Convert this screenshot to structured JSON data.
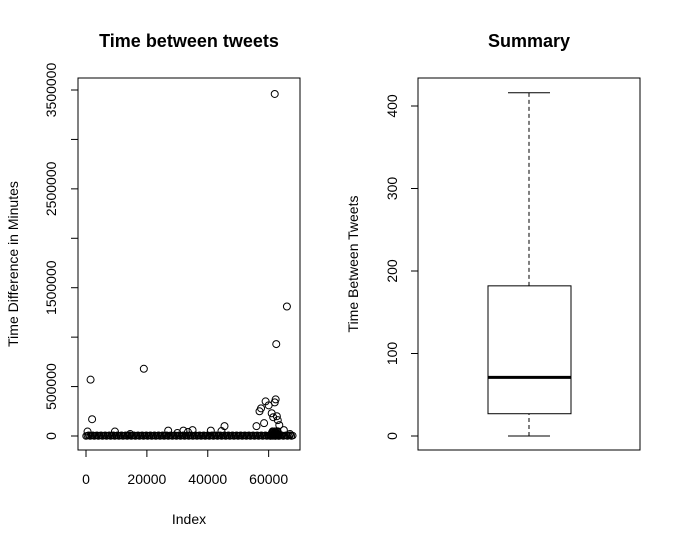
{
  "chart_data": [
    {
      "type": "scatter",
      "title": "Time between tweets",
      "xlabel": "Index",
      "ylabel": "Time Difference in Minutes",
      "xlim": [
        0,
        68000
      ],
      "ylim": [
        0,
        3500000
      ],
      "x_ticks": [
        "0",
        "20000",
        "40000",
        "60000"
      ],
      "y_ticks": [
        "0",
        "500000",
        "1500000",
        "2500000",
        "3500000"
      ],
      "grid": false,
      "points": [
        {
          "x": 1500,
          "y": 570000
        },
        {
          "x": 2000,
          "y": 170000
        },
        {
          "x": 19000,
          "y": 680000
        },
        {
          "x": 62000,
          "y": 3460000
        },
        {
          "x": 62500,
          "y": 930000
        },
        {
          "x": 66000,
          "y": 1310000
        },
        {
          "x": 500,
          "y": 45000
        },
        {
          "x": 9500,
          "y": 45000
        },
        {
          "x": 14500,
          "y": 20000
        },
        {
          "x": 27000,
          "y": 55000
        },
        {
          "x": 30000,
          "y": 30000
        },
        {
          "x": 32000,
          "y": 55000
        },
        {
          "x": 33500,
          "y": 40000
        },
        {
          "x": 35000,
          "y": 60000
        },
        {
          "x": 41000,
          "y": 55000
        },
        {
          "x": 44500,
          "y": 50000
        },
        {
          "x": 45500,
          "y": 100000
        },
        {
          "x": 56000,
          "y": 100000
        },
        {
          "x": 57000,
          "y": 250000
        },
        {
          "x": 57500,
          "y": 280000
        },
        {
          "x": 58500,
          "y": 130000
        },
        {
          "x": 59000,
          "y": 350000
        },
        {
          "x": 60000,
          "y": 310000
        },
        {
          "x": 61000,
          "y": 230000
        },
        {
          "x": 61500,
          "y": 190000
        },
        {
          "x": 62000,
          "y": 340000
        },
        {
          "x": 62300,
          "y": 370000
        },
        {
          "x": 62700,
          "y": 200000
        },
        {
          "x": 63000,
          "y": 160000
        },
        {
          "x": 63500,
          "y": 110000
        },
        {
          "x": 65000,
          "y": 60000
        },
        {
          "x": 67000,
          "y": 20000
        }
      ],
      "dense_band": {
        "x_from": 0,
        "x_to": 68000,
        "y_max": 12000
      }
    },
    {
      "type": "box",
      "title": "Summary",
      "ylabel": "Time Between Tweets",
      "ylim": [
        0,
        420
      ],
      "y_ticks": [
        "0",
        "100",
        "200",
        "300",
        "400"
      ],
      "box": {
        "min": 0,
        "q1": 27,
        "median": 71,
        "q3": 182,
        "max": 416
      }
    }
  ]
}
